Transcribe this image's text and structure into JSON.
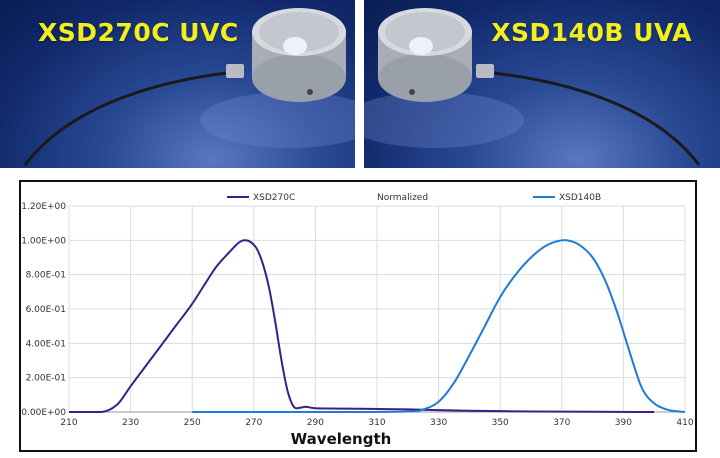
{
  "photos": {
    "left": {
      "title": "XSD270C UVC"
    },
    "right": {
      "title": "XSD140B UVA"
    }
  },
  "chart_data": {
    "type": "line",
    "title": "Normalized",
    "xlabel": "Wavelength",
    "ylabel": "",
    "xlim": [
      210,
      410
    ],
    "ylim": [
      0,
      1.2
    ],
    "x_ticks": [
      210,
      230,
      250,
      270,
      290,
      310,
      330,
      350,
      370,
      390,
      410
    ],
    "x_tick_labels": [
      "210",
      "230",
      "250",
      "270",
      "290",
      "310",
      "330",
      "350",
      "370",
      "390",
      "410"
    ],
    "y_ticks": [
      0,
      0.2,
      0.4,
      0.6,
      0.8,
      1.0,
      1.2
    ],
    "y_tick_labels": [
      "0.00E+00",
      "2.00E-01",
      "4.00E-01",
      "6.00E-01",
      "8.00E-01",
      "1.00E+00",
      "1.20E+00"
    ],
    "grid": true,
    "legend_position": "top",
    "series": [
      {
        "name": "XSD270C",
        "color": "#3a1f8c",
        "x": [
          210,
          218,
          222,
          226,
          230,
          235,
          240,
          245,
          250,
          255,
          258,
          262,
          265,
          267,
          269,
          271,
          273,
          275,
          277,
          279,
          281,
          283,
          285,
          287,
          290,
          300,
          320,
          340,
          360,
          380,
          400
        ],
        "y": [
          0,
          0,
          0.005,
          0.05,
          0.15,
          0.27,
          0.39,
          0.51,
          0.63,
          0.77,
          0.85,
          0.93,
          0.985,
          1.0,
          0.99,
          0.95,
          0.86,
          0.72,
          0.52,
          0.3,
          0.12,
          0.03,
          0.025,
          0.03,
          0.022,
          0.02,
          0.015,
          0.007,
          0.003,
          0.001,
          0
        ]
      },
      {
        "name": "XSD140B",
        "color": "#1e7bd6",
        "x": [
          250,
          300,
          320,
          325,
          330,
          335,
          340,
          345,
          350,
          355,
          360,
          365,
          370,
          373,
          376,
          380,
          384,
          388,
          392,
          396,
          400,
          404,
          408,
          410
        ],
        "y": [
          0,
          0,
          0.003,
          0.015,
          0.06,
          0.17,
          0.33,
          0.5,
          0.67,
          0.8,
          0.9,
          0.97,
          1.0,
          0.995,
          0.97,
          0.9,
          0.77,
          0.58,
          0.35,
          0.14,
          0.05,
          0.015,
          0.003,
          0
        ]
      }
    ]
  }
}
